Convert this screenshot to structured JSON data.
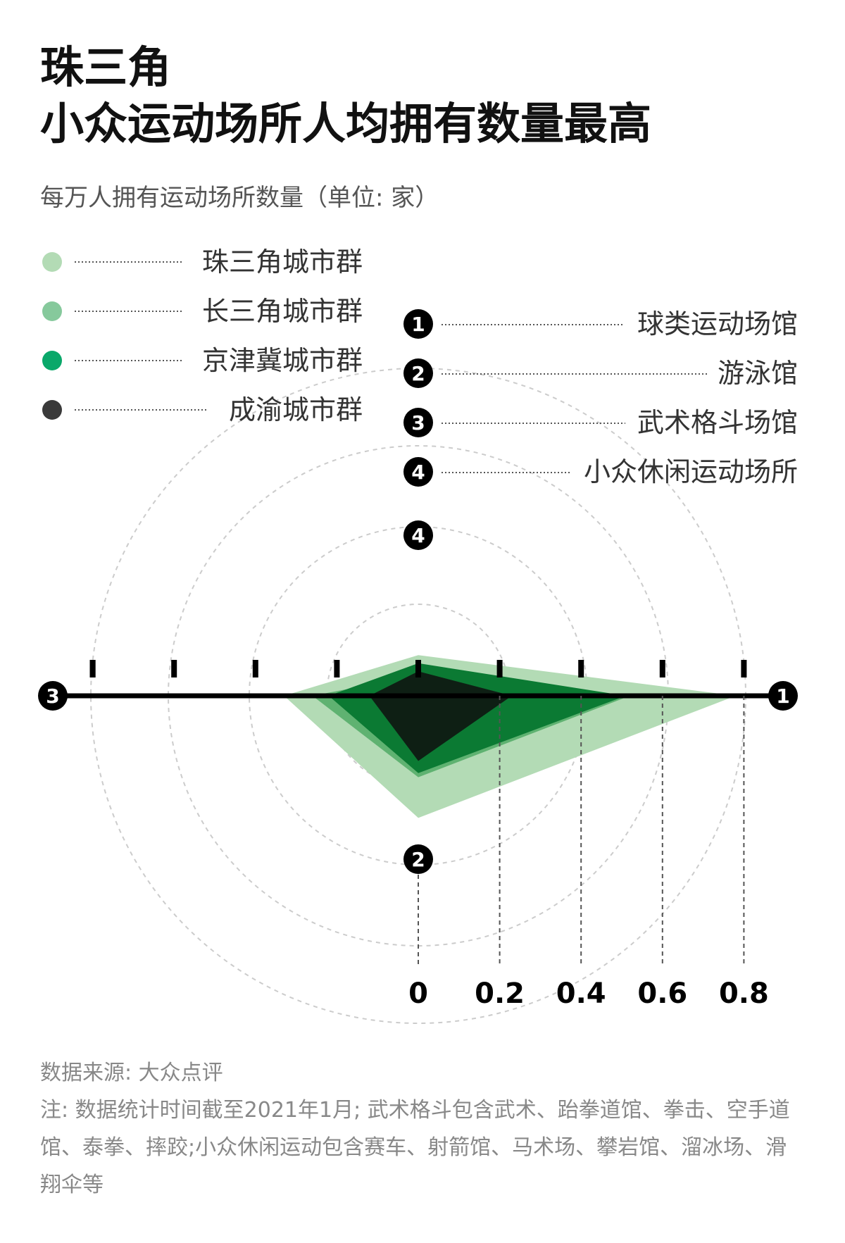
{
  "page": {
    "title_line1": "珠三角",
    "title_line2": "小众运动场所人均拥有数量最高",
    "subtitle": "每万人拥有运动场所数量（单位: 家）",
    "source": "数据来源: 大众点评",
    "note": "注: 数据统计时间截至2021年1月; 武术格斗包含武术、跆拳道馆、拳击、空手道馆、泰拳、摔跤;小众休闲运动包含赛车、射箭馆、马术场、攀岩馆、溜冰场、滑翔伞等"
  },
  "colors": {
    "zsj": "#b3dbb5",
    "csj": "#5fb271",
    "jjj": "#0b7a33",
    "cy": "#0e1f14",
    "axis": "#000000",
    "ring": "#cccccc"
  },
  "chart_data": {
    "type": "radar",
    "title": "小众运动场所人均拥有数量最高",
    "unit": "每万人拥有运动场所数量（单位: 家）",
    "axes": [
      {
        "id": "1",
        "name": "球类运动场馆",
        "direction": "right"
      },
      {
        "id": "2",
        "name": "游泳馆",
        "direction": "down"
      },
      {
        "id": "3",
        "name": "武术格斗场馆",
        "direction": "left"
      },
      {
        "id": "4",
        "name": "小众休闲运动场所",
        "direction": "up"
      }
    ],
    "scale_ticks": [
      "0",
      "0.2",
      "0.4",
      "0.6",
      "0.8"
    ],
    "scale_tick_values": [
      0,
      0.2,
      0.4,
      0.6,
      0.8
    ],
    "ring_values": [
      0.2,
      0.4,
      0.6,
      0.8
    ],
    "series": [
      {
        "name": "珠三角城市群",
        "color": "#b3dbb5",
        "values": [
          0.78,
          0.3,
          0.33,
          0.1
        ]
      },
      {
        "name": "长三角城市群",
        "color": "#5fb271",
        "values": [
          0.52,
          0.2,
          0.26,
          0.05
        ]
      },
      {
        "name": "京津冀城市群",
        "color": "#0b7a33",
        "values": [
          0.51,
          0.19,
          0.22,
          0.08
        ]
      },
      {
        "name": "成渝城市群",
        "color": "#0e1f14",
        "values": [
          0.23,
          0.16,
          0.12,
          0.06
        ]
      }
    ],
    "legend_position": "top-left"
  }
}
